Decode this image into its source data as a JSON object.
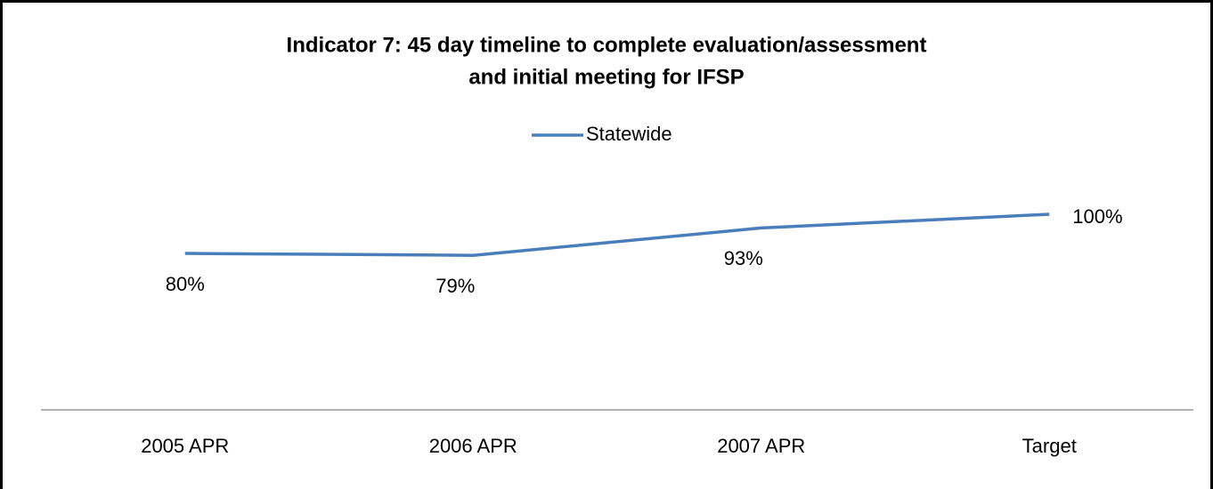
{
  "chart_data": {
    "type": "line",
    "title": [
      "Indicator 7: 45 day timeline to complete evaluation/assessment",
      "and initial meeting for IFSP"
    ],
    "categories": [
      "2005 APR",
      "2006 APR",
      "2007 APR",
      "Target"
    ],
    "series": [
      {
        "name": "Statewide",
        "color": "#4a7ebb",
        "values": [
          80,
          79,
          93,
          100
        ],
        "value_labels": [
          "80%",
          "79%",
          "93%",
          "100%"
        ]
      }
    ],
    "ylim": [
      0,
      100
    ],
    "legend": "top"
  }
}
